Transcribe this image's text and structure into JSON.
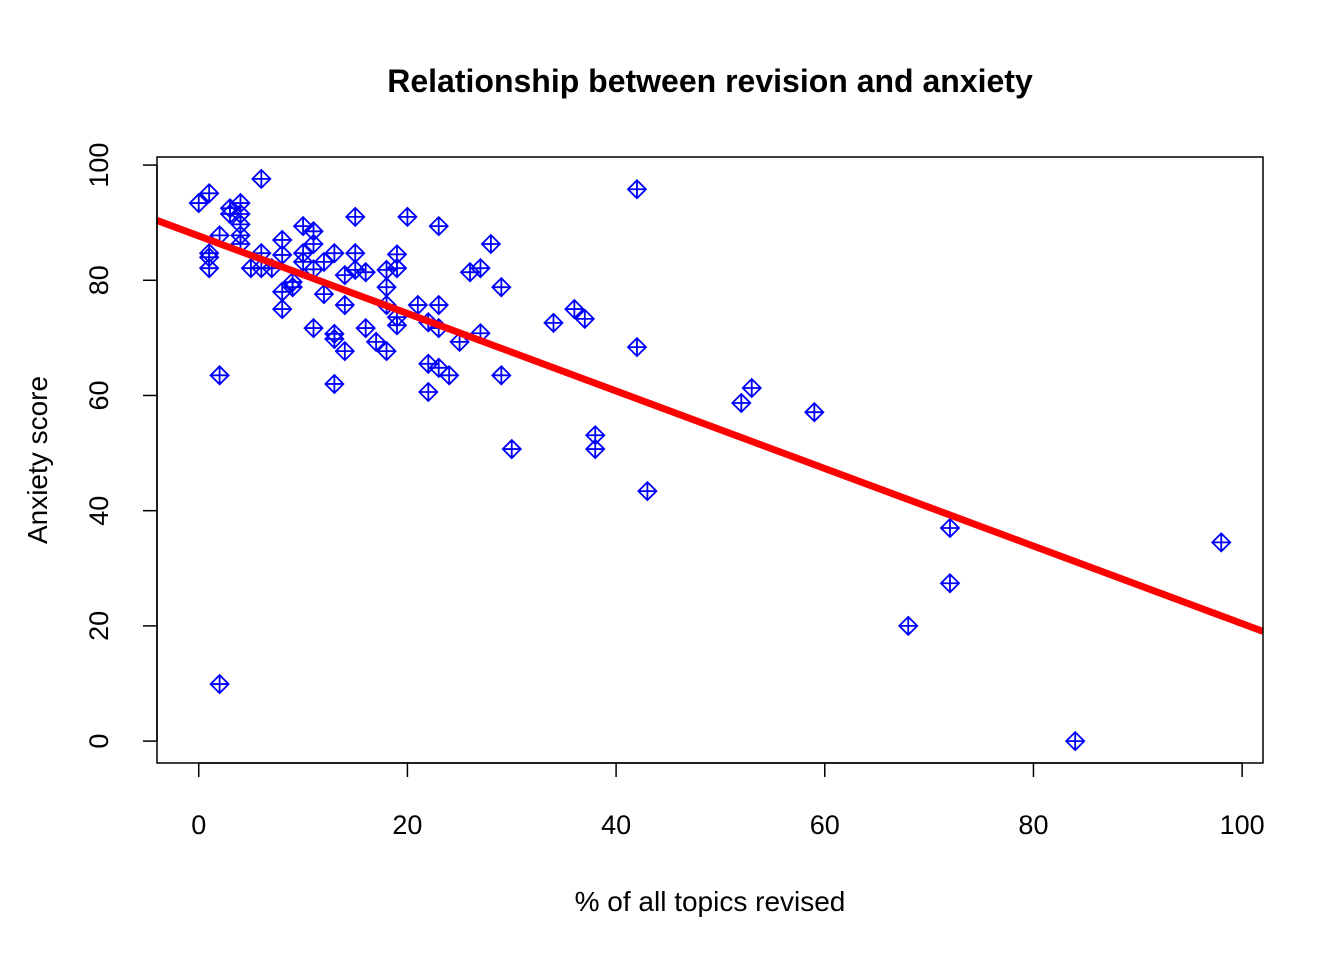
{
  "chart_data": {
    "type": "scatter",
    "title": "Relationship between revision and anxiety",
    "xlabel": "% of all topics revised",
    "ylabel": "Anxiety score",
    "xlim": [
      -4,
      102
    ],
    "ylim": [
      -3.8,
      101.4
    ],
    "xticks": [
      0,
      20,
      40,
      60,
      80,
      100
    ],
    "yticks": [
      0,
      20,
      40,
      60,
      80,
      100
    ],
    "grid": false,
    "marker": "diamond-plus",
    "point_color": "#0000ff",
    "line_color": "#ff0000",
    "regression_line": {
      "intercept": 87.7,
      "slope": -0.673
    },
    "points": [
      [
        0,
        93.4
      ],
      [
        1,
        95.1
      ],
      [
        1,
        84
      ],
      [
        1,
        82.1
      ],
      [
        1,
        84.7
      ],
      [
        2,
        63.5
      ],
      [
        2,
        9.9
      ],
      [
        2,
        87.8
      ],
      [
        3,
        92.5
      ],
      [
        3,
        91.5
      ],
      [
        4,
        93.4
      ],
      [
        4,
        91.5
      ],
      [
        4,
        89.7
      ],
      [
        4,
        87.8
      ],
      [
        4,
        86.3
      ],
      [
        5,
        82.1
      ],
      [
        6,
        97.6
      ],
      [
        6,
        84.7
      ],
      [
        6,
        82.1
      ],
      [
        7,
        82.1
      ],
      [
        8,
        87
      ],
      [
        8,
        84.4
      ],
      [
        8,
        78
      ],
      [
        8,
        75
      ],
      [
        9,
        78.8
      ],
      [
        9,
        79.7
      ],
      [
        10,
        89.4
      ],
      [
        10,
        84.7
      ],
      [
        10,
        83.2
      ],
      [
        11,
        88.5
      ],
      [
        11,
        86.3
      ],
      [
        11,
        81.9
      ],
      [
        11,
        71.7
      ],
      [
        12,
        83.2
      ],
      [
        12,
        77.6
      ],
      [
        13,
        84.7
      ],
      [
        13,
        70.7
      ],
      [
        13,
        69.8
      ],
      [
        13,
        62
      ],
      [
        14,
        80.9
      ],
      [
        14,
        75.7
      ],
      [
        14,
        67.7
      ],
      [
        15,
        91
      ],
      [
        15,
        84.7
      ],
      [
        15,
        81.8
      ],
      [
        16,
        81.4
      ],
      [
        16,
        71.7
      ],
      [
        17,
        69.3
      ],
      [
        18,
        78.8
      ],
      [
        18,
        81.8
      ],
      [
        18,
        75.7
      ],
      [
        18,
        67.7
      ],
      [
        19,
        84.5
      ],
      [
        19,
        82.1
      ],
      [
        19,
        72.2
      ],
      [
        19,
        73.6
      ],
      [
        20,
        91
      ],
      [
        21,
        75.7
      ],
      [
        22,
        72.7
      ],
      [
        22,
        65.5
      ],
      [
        22,
        60.6
      ],
      [
        23,
        89.4
      ],
      [
        23,
        75.7
      ],
      [
        23,
        71.7
      ],
      [
        23,
        64.8
      ],
      [
        24,
        63.5
      ],
      [
        25,
        69.3
      ],
      [
        26,
        81.4
      ],
      [
        27,
        82.1
      ],
      [
        27,
        70.8
      ],
      [
        28,
        86.3
      ],
      [
        29,
        78.8
      ],
      [
        29,
        63.5
      ],
      [
        30,
        50.7
      ],
      [
        34,
        72.6
      ],
      [
        36,
        75
      ],
      [
        37,
        73.3
      ],
      [
        38,
        53.1
      ],
      [
        38,
        50.7
      ],
      [
        42,
        95.8
      ],
      [
        42,
        68.4
      ],
      [
        43,
        43.4
      ],
      [
        52,
        58.7
      ],
      [
        53,
        61.3
      ],
      [
        59,
        57.1
      ],
      [
        68,
        20
      ],
      [
        72,
        37
      ],
      [
        72,
        27.4
      ],
      [
        84,
        0
      ],
      [
        98,
        34.5
      ]
    ]
  }
}
